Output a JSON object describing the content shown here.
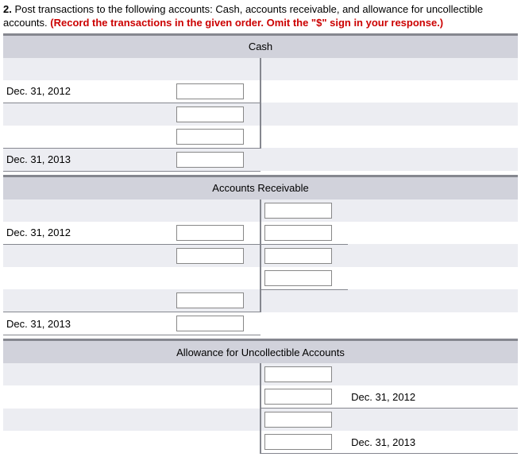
{
  "question": {
    "number": "2.",
    "text_a": "Post transactions to the following accounts: Cash, accounts receivable, and allowance for uncollectible accounts. ",
    "text_b": "(Record the transactions in the given order. Omit the \"$\" sign in your response.)"
  },
  "accounts": {
    "cash": {
      "title": "Cash",
      "row1_left": "Dec. 31, 2012",
      "row3_left": "Dec. 31, 2013"
    },
    "ar": {
      "title": "Accounts Receivable",
      "row1_left": "Dec. 31, 2012",
      "row5_left": "Dec. 31, 2013"
    },
    "allow": {
      "title": "Allowance for Uncollectible Accounts",
      "row1_right": "Dec. 31, 2012",
      "row3_right": "Dec. 31, 2013"
    }
  },
  "colors": {
    "header_bar": "#d1d2db",
    "pale_row": "#ecedf2",
    "border": "#85878f",
    "instr_red": "#cc0000"
  }
}
